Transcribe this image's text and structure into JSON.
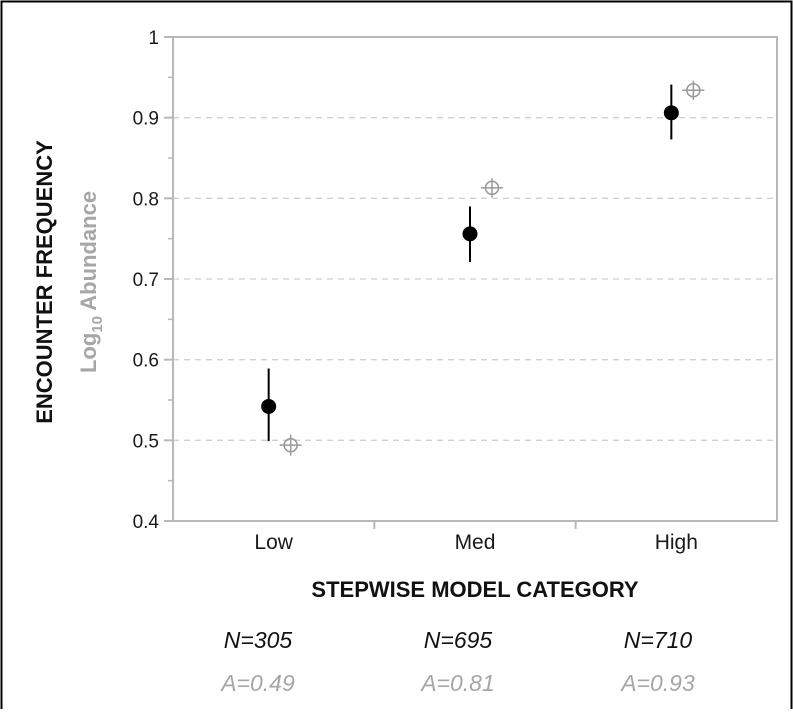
{
  "chart_data": {
    "type": "scatter",
    "xlabel": "STEPWISE MODEL CATEGORY",
    "ylabel": "ENCOUNTER FREQUENCY",
    "ylabel2_prefix": "Log",
    "ylabel2_sub": "10",
    "ylabel2_suffix": " Abundance",
    "categories": [
      "Low",
      "Med",
      "High"
    ],
    "ylim": [
      0.4,
      1.0
    ],
    "yticks": [
      0.4,
      0.5,
      0.6,
      0.7,
      0.8,
      0.9,
      1.0
    ],
    "ytick_labels": [
      "0.4",
      "0.5",
      "0.6",
      "0.7",
      "0.8",
      "0.9",
      "1"
    ],
    "grid": "horizontal-dashed",
    "series": [
      {
        "marker": "filled-circle",
        "color": "#000000",
        "values": [
          0.542,
          0.756,
          0.906
        ],
        "lower": [
          0.499,
          0.721,
          0.873
        ],
        "upper": [
          0.589,
          0.79,
          0.941
        ]
      },
      {
        "marker": "open-crosshair-circle",
        "color": "#9a9a9a",
        "values": [
          0.494,
          0.813,
          0.934
        ],
        "lower": [
          0.481,
          0.801,
          0.922
        ],
        "upper": [
          0.507,
          0.825,
          0.946
        ]
      }
    ],
    "n_labels": [
      "N=305",
      "N=695",
      "N=710"
    ],
    "a_labels": [
      "A=0.49",
      "A=0.81",
      "A=0.93"
    ]
  },
  "colors": {
    "axis": "#b8b8b8",
    "grid": "#d0d0d0",
    "frame": "#000000"
  }
}
